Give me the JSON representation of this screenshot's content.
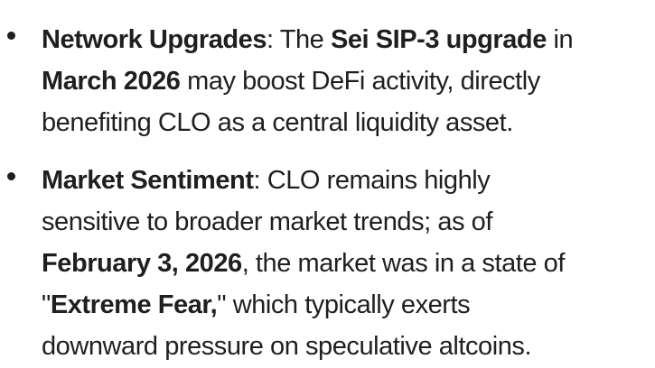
{
  "page": {
    "background_color": "#ffffff",
    "text_color": "#1f1f1f"
  },
  "bullets": [
    {
      "topic": "Network Upgrades",
      "lines": [
        {
          "segments": [
            {
              "text": "Network Upgrades",
              "bold": true
            },
            {
              "text": ": The ",
              "bold": false
            },
            {
              "text": "Sei SIP-3 upgrade",
              "bold": true
            },
            {
              "text": " in",
              "bold": false
            }
          ]
        },
        {
          "segments": [
            {
              "text": "March 2026",
              "bold": true
            },
            {
              "text": " may boost DeFi activity, directly",
              "bold": false
            }
          ]
        },
        {
          "segments": [
            {
              "text": "benefiting CLO as a central liquidity asset.",
              "bold": false
            }
          ]
        }
      ]
    },
    {
      "topic": "Market Sentiment",
      "lines": [
        {
          "segments": [
            {
              "text": "Market Sentiment",
              "bold": true
            },
            {
              "text": ": CLO remains highly",
              "bold": false
            }
          ]
        },
        {
          "segments": [
            {
              "text": "sensitive to broader market trends; as of",
              "bold": false
            }
          ]
        },
        {
          "segments": [
            {
              "text": "February 3, 2026",
              "bold": true
            },
            {
              "text": ", the market was in a state of",
              "bold": false
            }
          ]
        },
        {
          "segments": [
            {
              "text": "\"",
              "bold": false
            },
            {
              "text": "Extreme Fear,",
              "bold": true
            },
            {
              "text": "\" which typically exerts",
              "bold": false
            }
          ]
        },
        {
          "segments": [
            {
              "text": "downward pressure on speculative altcoins.",
              "bold": false
            }
          ]
        }
      ]
    }
  ]
}
